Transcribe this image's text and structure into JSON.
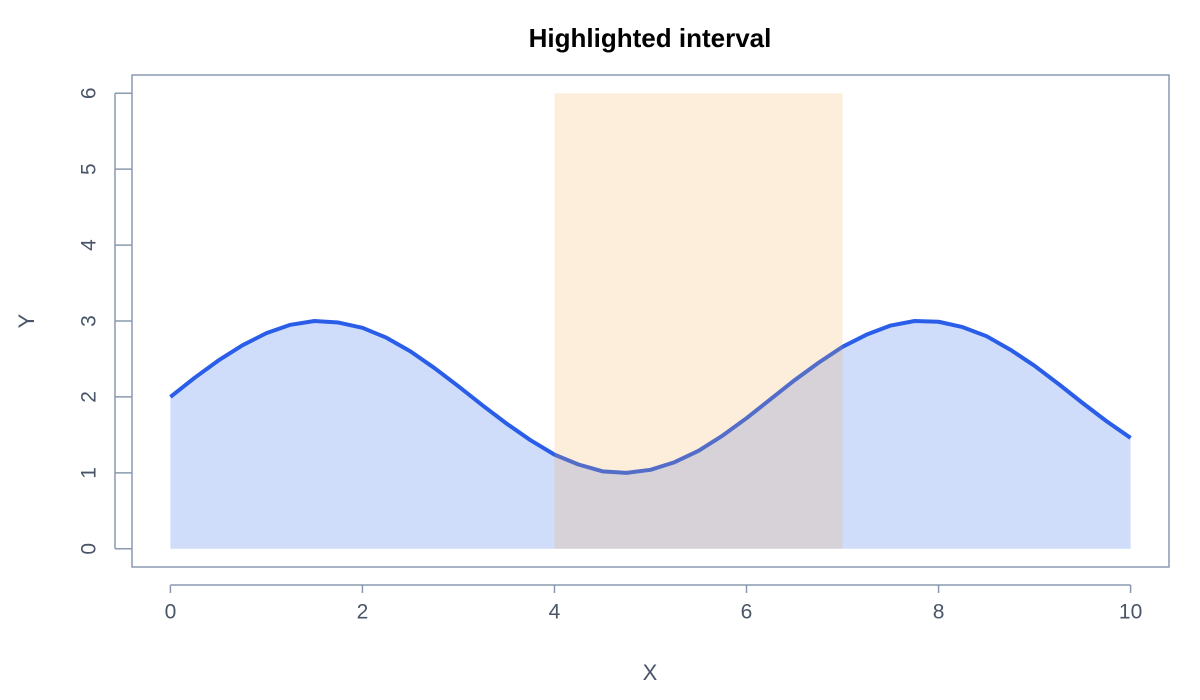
{
  "chart_data": {
    "type": "area",
    "title": "Highlighted interval",
    "x_label": "X",
    "y_label": "Y",
    "x": [
      0,
      0.25,
      0.5,
      0.75,
      1,
      1.25,
      1.5,
      1.75,
      2,
      2.25,
      2.5,
      2.75,
      3,
      3.25,
      3.5,
      3.75,
      4,
      4.25,
      4.5,
      4.75,
      5,
      5.25,
      5.5,
      5.75,
      6,
      6.25,
      6.5,
      6.75,
      7,
      7.25,
      7.5,
      7.75,
      8,
      8.25,
      8.5,
      8.75,
      9,
      9.25,
      9.5,
      9.75,
      10
    ],
    "series": [
      {
        "color": "#2b5ee8",
        "fill": "rgba(37,99,235,0.22)",
        "values": [
          2,
          2.25,
          2.48,
          2.68,
          2.84,
          2.95,
          3.0,
          2.98,
          2.91,
          2.78,
          2.6,
          2.38,
          2.14,
          1.89,
          1.65,
          1.43,
          1.24,
          1.11,
          1.02,
          1.0,
          1.04,
          1.14,
          1.29,
          1.49,
          1.72,
          1.97,
          2.22,
          2.45,
          2.66,
          2.82,
          2.94,
          3.0,
          2.99,
          2.92,
          2.8,
          2.62,
          2.41,
          2.17,
          1.92,
          1.68,
          1.46
        ]
      }
    ],
    "highlight": {
      "x": [
        4,
        7
      ],
      "y": [
        0,
        6
      ],
      "color": "rgba(245,170,80,0.2)"
    },
    "xlim": [
      -0.4,
      10.4
    ],
    "ylim": [
      -0.24,
      6.24
    ],
    "xticks": [
      0,
      2,
      4,
      6,
      8,
      10
    ],
    "yticks": [
      0,
      1,
      2,
      3,
      4,
      5,
      6
    ]
  }
}
